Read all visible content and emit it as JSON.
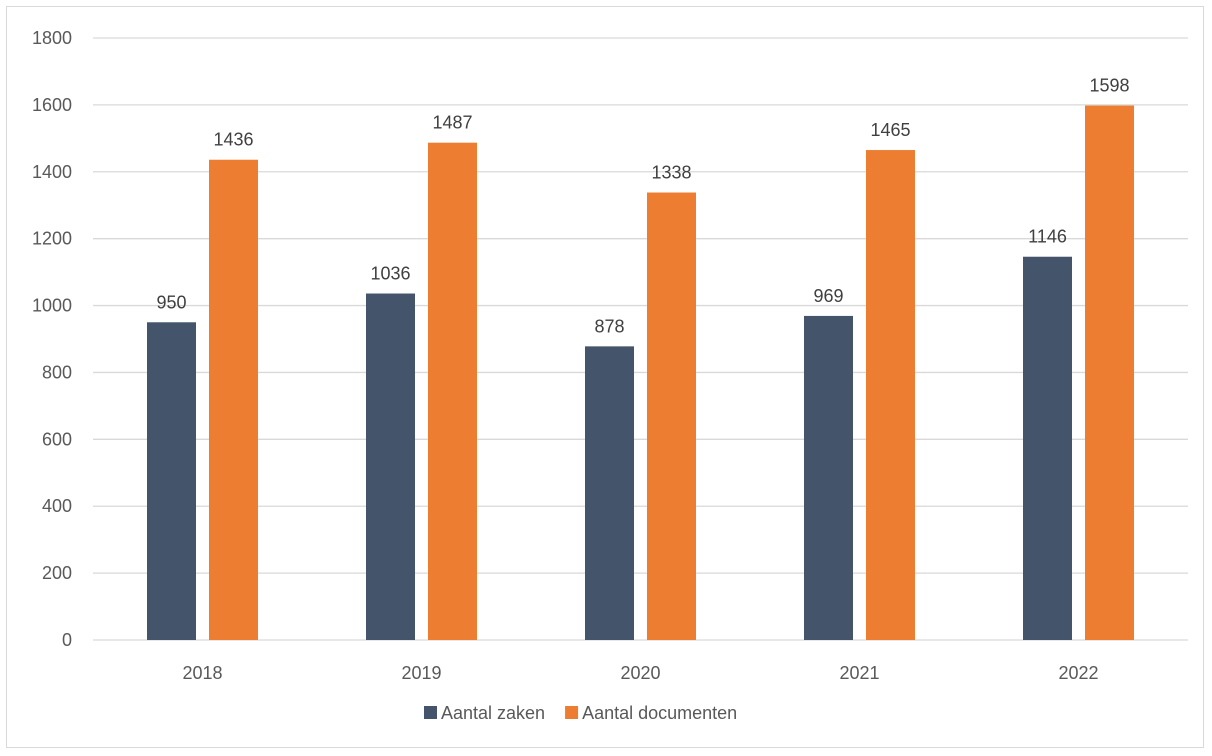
{
  "chart_data": {
    "type": "bar",
    "categories": [
      "2018",
      "2019",
      "2020",
      "2021",
      "2022"
    ],
    "series": [
      {
        "name": "Aantal zaken",
        "values": [
          950,
          1036,
          878,
          969,
          1146
        ],
        "color": "#44546a"
      },
      {
        "name": "Aantal documenten",
        "values": [
          1436,
          1487,
          1338,
          1465,
          1598
        ],
        "color": "#ed7d31"
      }
    ],
    "y_ticks": [
      "0",
      "200",
      "400",
      "600",
      "800",
      "1000",
      "1200",
      "1400",
      "1600",
      "1800"
    ],
    "ylim": [
      0,
      1800
    ],
    "grid": true,
    "legend_position": "bottom",
    "data_labels": true
  }
}
